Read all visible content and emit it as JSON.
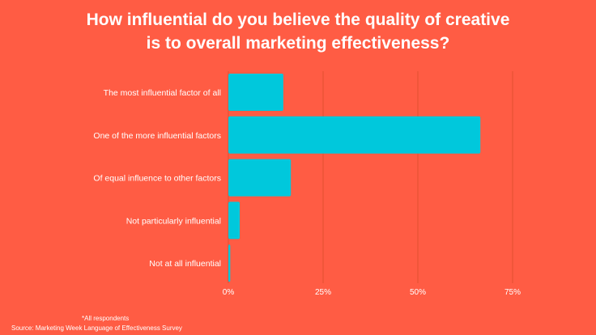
{
  "chart_data": {
    "type": "bar",
    "orientation": "horizontal",
    "title_lines": [
      "How influential do you believe the quality of creative",
      "is to overall marketing effectiveness?"
    ],
    "categories": [
      "The most influential factor of all",
      "One of the more influential factors",
      "Of equal influence to other factors",
      "Not particularly influential",
      "Not at all influential"
    ],
    "values": [
      14.5,
      66.5,
      16.5,
      3,
      0.5
    ],
    "xlim": [
      0,
      75
    ],
    "xticks": [
      0,
      25,
      50,
      75
    ],
    "xtick_labels": [
      "0%",
      "25%",
      "50%",
      "75%"
    ],
    "grid": "vertical",
    "legend": "none",
    "colors": {
      "background": "#FF5C44",
      "bar": "#00C8DC",
      "grid": "#E0502F",
      "text": "#ffffff"
    }
  },
  "footnote": "*All respondents",
  "source": "Source: Marketing Week Language of Effectiveness Survey"
}
